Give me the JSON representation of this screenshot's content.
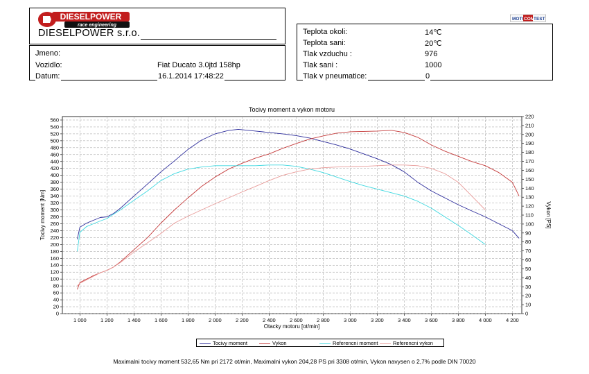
{
  "header": {
    "logo_text": "DIESELPOWER",
    "logo_tagline": "race engineering",
    "company": "DIESELPOWER s.r.o.",
    "mct_logo": {
      "part1": "MOTO",
      "part2": "COM",
      "part3": "TEST"
    }
  },
  "vehicle": {
    "rows": [
      {
        "label": "Jmeno:",
        "value": ""
      },
      {
        "label": "Vozidlo:",
        "value": "Fiat Ducato 3.0jtd 158hp"
      },
      {
        "label": "Datum:",
        "value": "16.1.2014 17:48:22"
      }
    ]
  },
  "conditions": {
    "rows": [
      {
        "label": "Teplota okoli:",
        "value": "14℃"
      },
      {
        "label": "Teplota sani:",
        "value": "20℃"
      },
      {
        "label": "Tlak vzduchu :",
        "value": "976"
      },
      {
        "label": "Tlak sani :",
        "value": "1000"
      },
      {
        "label": "Tlak v pneumatice:",
        "value": "0"
      }
    ]
  },
  "footer": "Maximalni tocivy moment 532,65 Nm pri 2172 ot/min,  Maximalni vykon 204,28 PS pri 3308 ot/min,  Vykon navysen o 2,7% podle DIN 70020",
  "colors": {
    "torque": "#2b2b9a",
    "power": "#c43a3a",
    "ref_torque": "#3fd8e0",
    "ref_power": "#e89a98",
    "grid": "#9a9a9a"
  },
  "chart_data": {
    "type": "line",
    "title": "Tocivy moment a vykon motoru",
    "xlabel": "Otacky motoru [ot/min]",
    "ylabel_left": "Tocivy moment [Nm]",
    "ylabel_right": "Vykon [PS]",
    "xlim": [
      870,
      4270
    ],
    "ylim_left": [
      0,
      570
    ],
    "ylim_right": [
      0,
      220
    ],
    "x_ticks": [
      1000,
      1200,
      1400,
      1600,
      1800,
      2000,
      2200,
      2400,
      2600,
      2800,
      3000,
      3200,
      3400,
      3600,
      3800,
      4000,
      4200
    ],
    "x_tick_labels": [
      "1 000",
      "1 200",
      "1 400",
      "1 600",
      "1 800",
      "2 000",
      "2 200",
      "2 400",
      "2 600",
      "2 800",
      "3 000",
      "3 200",
      "3 400",
      "3 600",
      "3 800",
      "4 000",
      "4 200"
    ],
    "y_left_ticks": [
      0,
      20,
      40,
      60,
      80,
      100,
      120,
      140,
      160,
      180,
      200,
      220,
      240,
      260,
      280,
      300,
      320,
      340,
      360,
      380,
      400,
      420,
      440,
      460,
      480,
      500,
      520,
      540,
      560
    ],
    "y_right_ticks": [
      0,
      10,
      20,
      30,
      40,
      50,
      60,
      70,
      80,
      90,
      100,
      110,
      120,
      130,
      140,
      150,
      160,
      170,
      180,
      190,
      200,
      210,
      220
    ],
    "grid": true,
    "legend_position": "bottom",
    "series": [
      {
        "name": "Tocivy moment",
        "axis": "left",
        "color": "#2b2b9a",
        "x": [
          980,
          1000,
          1050,
          1100,
          1150,
          1200,
          1250,
          1300,
          1400,
          1500,
          1600,
          1700,
          1800,
          1900,
          2000,
          2100,
          2172,
          2200,
          2300,
          2400,
          2500,
          2600,
          2700,
          2800,
          2900,
          3000,
          3100,
          3200,
          3300,
          3400,
          3500,
          3600,
          3700,
          3800,
          3900,
          4000,
          4100,
          4200,
          4250
        ],
        "values": [
          215,
          250,
          262,
          270,
          278,
          280,
          290,
          305,
          340,
          375,
          410,
          442,
          475,
          502,
          520,
          530,
          533,
          532,
          528,
          524,
          520,
          515,
          508,
          498,
          488,
          476,
          462,
          448,
          432,
          410,
          380,
          355,
          335,
          315,
          297,
          280,
          260,
          240,
          218
        ]
      },
      {
        "name": "Vykon",
        "axis": "left",
        "color": "#c43a3a",
        "x": [
          980,
          1000,
          1050,
          1100,
          1150,
          1200,
          1250,
          1300,
          1400,
          1500,
          1600,
          1700,
          1800,
          1900,
          2000,
          2100,
          2200,
          2300,
          2400,
          2500,
          2600,
          2700,
          2800,
          2900,
          3000,
          3100,
          3200,
          3300,
          3308,
          3400,
          3500,
          3600,
          3700,
          3800,
          3900,
          4000,
          4100,
          4200,
          4250
        ],
        "values": [
          70,
          90,
          100,
          110,
          118,
          125,
          135,
          150,
          185,
          220,
          262,
          300,
          335,
          368,
          395,
          418,
          435,
          450,
          462,
          478,
          492,
          505,
          514,
          522,
          526,
          527,
          528,
          530,
          530,
          524,
          510,
          488,
          470,
          455,
          440,
          428,
          408,
          380,
          340
        ]
      },
      {
        "name": "Referencni moment",
        "axis": "left",
        "color": "#3fd8e0",
        "x": [
          980,
          1000,
          1050,
          1100,
          1150,
          1200,
          1250,
          1300,
          1400,
          1500,
          1600,
          1700,
          1800,
          1900,
          2000,
          2100,
          2200,
          2300,
          2400,
          2500,
          2600,
          2700,
          2800,
          2900,
          3000,
          3100,
          3200,
          3300,
          3400,
          3500,
          3600,
          3700,
          3800,
          3900,
          4000
        ],
        "values": [
          180,
          235,
          252,
          260,
          268,
          275,
          288,
          300,
          328,
          355,
          385,
          405,
          418,
          424,
          428,
          428,
          428,
          428,
          430,
          430,
          426,
          418,
          408,
          395,
          382,
          370,
          360,
          350,
          340,
          325,
          305,
          280,
          255,
          228,
          200
        ]
      },
      {
        "name": "Referencni vykon",
        "axis": "left",
        "color": "#e89a98",
        "x": [
          980,
          1000,
          1050,
          1100,
          1150,
          1200,
          1250,
          1300,
          1400,
          1500,
          1600,
          1700,
          1800,
          1900,
          2000,
          2100,
          2200,
          2300,
          2400,
          2500,
          2600,
          2700,
          2800,
          2900,
          3000,
          3100,
          3200,
          3300,
          3400,
          3500,
          3600,
          3700,
          3800,
          3900,
          4000
        ],
        "values": [
          80,
          88,
          98,
          108,
          118,
          125,
          135,
          148,
          178,
          205,
          232,
          262,
          282,
          300,
          318,
          335,
          352,
          368,
          385,
          400,
          410,
          418,
          422,
          424,
          425,
          426,
          428,
          430,
          430,
          428,
          420,
          405,
          380,
          340,
          300
        ]
      }
    ]
  }
}
